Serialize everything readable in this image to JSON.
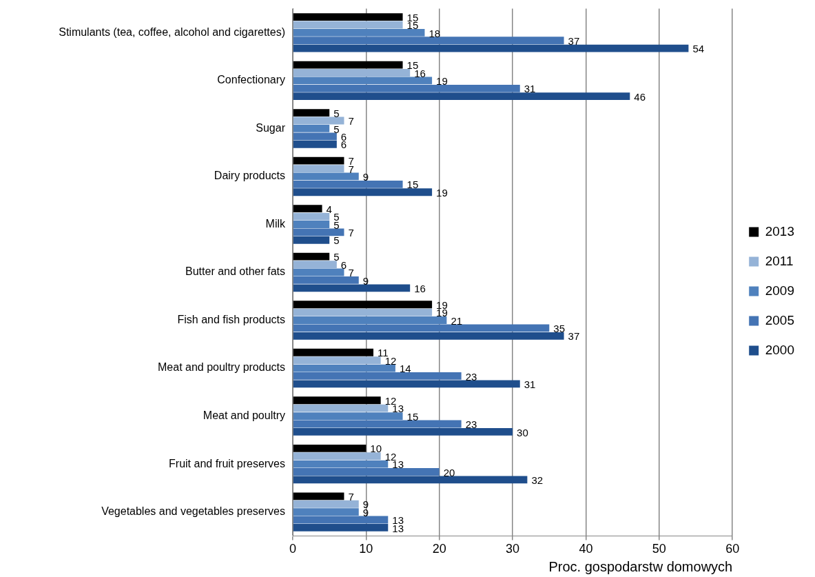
{
  "chart_data": {
    "type": "bar",
    "orientation": "horizontal",
    "xlabel": "Proc. gospodarstw domowych",
    "categories": [
      "Stimulants (tea, coffee, alcohol and cigarettes)",
      "Confectionary",
      "Sugar",
      "Dairy products",
      "Milk",
      "Butter and other fats",
      "Fish and fish products",
      "Meat and poultry products",
      "Meat and poultry",
      "Fruit and fruit preserves",
      "Vegetables and vegetables preserves"
    ],
    "series": [
      {
        "name": "2013",
        "color": "#000000",
        "values": [
          15,
          15,
          5,
          7,
          4,
          5,
          19,
          11,
          12,
          10,
          7
        ]
      },
      {
        "name": "2011",
        "color": "#95b3d7",
        "values": [
          15,
          16,
          7,
          7,
          5,
          6,
          19,
          12,
          13,
          12,
          9
        ]
      },
      {
        "name": "2009",
        "color": "#4f81bd",
        "values": [
          18,
          19,
          5,
          9,
          5,
          7,
          21,
          14,
          15,
          13,
          9
        ]
      },
      {
        "name": "2005",
        "color": "#4474b4",
        "values": [
          37,
          31,
          6,
          15,
          7,
          9,
          35,
          23,
          23,
          20,
          13
        ]
      },
      {
        "name": "2000",
        "color": "#1f4e8c",
        "values": [
          54,
          46,
          6,
          19,
          5,
          16,
          37,
          31,
          30,
          32,
          13
        ]
      }
    ],
    "xlim": [
      0,
      60
    ],
    "xticks": [
      0,
      10,
      20,
      30,
      40,
      50,
      60
    ],
    "grid": "x",
    "legend": "right",
    "data_labels": true
  }
}
